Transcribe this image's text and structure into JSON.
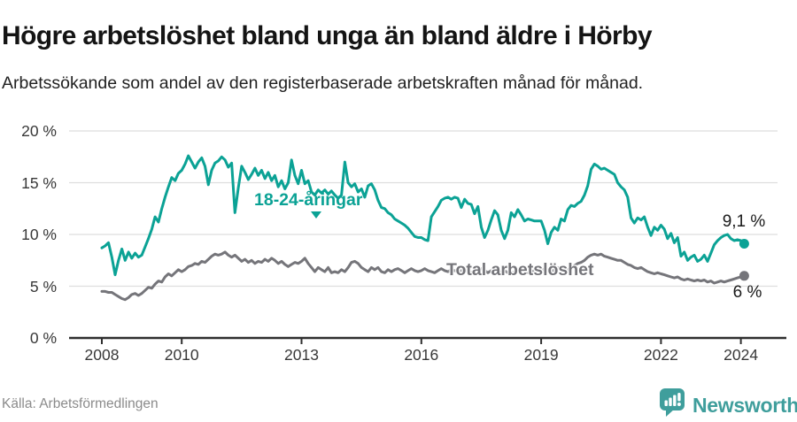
{
  "header": {
    "title": "Högre arbetslöshet bland unga än bland äldre i Hörby",
    "subtitle": "Arbetssökande som andel av den registerbaserade arbetskraften månad för månad."
  },
  "footer": {
    "source": "Källa: Arbetsförmedlingen",
    "brand": "Newsworthy"
  },
  "colors": {
    "youth": "#0ba295",
    "total": "#75757a",
    "grid": "#dedede",
    "axis": "#2f2f2f",
    "brand": "#3f9e9c"
  },
  "chart_data": {
    "type": "line",
    "title": "Högre arbetslöshet bland unga än bland äldre i Hörby",
    "subtitle": "Arbetssökande som andel av den registerbaserade arbetskraften månad för månad.",
    "frequency": "monthly",
    "x_start": "2008-01",
    "x_end": "2024-02",
    "x_tick_years": [
      2008,
      2010,
      2013,
      2016,
      2019,
      2022,
      2024
    ],
    "y_ticks": [
      {
        "value": 0,
        "label": "0 %"
      },
      {
        "value": 5,
        "label": "5 %"
      },
      {
        "value": 10,
        "label": "10 %"
      },
      {
        "value": 15,
        "label": "15 %"
      },
      {
        "value": 20,
        "label": "20 %"
      }
    ],
    "ylim": [
      0,
      20
    ],
    "grid": true,
    "legend_position": "inline-labels",
    "series": [
      {
        "key": "youth",
        "name": "18-24-åringar",
        "end_label": "9,1 %",
        "end_value": 9.1,
        "color": "#0ba295",
        "values": [
          8.7,
          8.9,
          9.2,
          7.8,
          6.1,
          7.5,
          8.6,
          7.5,
          8.3,
          7.7,
          8.2,
          7.8,
          8.0,
          8.8,
          9.6,
          10.5,
          11.7,
          11.2,
          12.5,
          13.6,
          14.6,
          15.5,
          15.2,
          15.9,
          16.2,
          16.8,
          17.6,
          17.0,
          16.4,
          17.0,
          17.4,
          16.6,
          14.8,
          16.2,
          16.9,
          17.1,
          17.5,
          17.2,
          16.5,
          16.9,
          12.1,
          14.5,
          16.6,
          16.0,
          15.3,
          15.8,
          16.4,
          15.7,
          16.2,
          15.4,
          16.0,
          15.2,
          15.7,
          14.6,
          15.2,
          14.4,
          15.0,
          17.2,
          15.7,
          14.9,
          16.2,
          14.9,
          15.2,
          14.1,
          13.8,
          14.3,
          14.0,
          14.3,
          13.9,
          14.2,
          13.8,
          13.5,
          13.8,
          17.0,
          15.0,
          14.6,
          14.9,
          14.1,
          14.4,
          13.6,
          14.7,
          14.9,
          14.3,
          13.3,
          12.6,
          12.5,
          12.1,
          11.9,
          11.5,
          11.3,
          11.1,
          10.9,
          10.6,
          10.2,
          9.8,
          9.7,
          9.7,
          9.5,
          9.4,
          11.7,
          12.2,
          12.7,
          13.3,
          13.5,
          13.6,
          13.4,
          13.6,
          13.5,
          12.6,
          13.4,
          13.0,
          12.9,
          12.0,
          12.7,
          10.7,
          9.7,
          10.4,
          11.4,
          12.3,
          11.9,
          10.4,
          9.6,
          10.4,
          12.1,
          11.7,
          12.4,
          11.9,
          11.3,
          11.5,
          11.4,
          11.3,
          11.3,
          11.3,
          10.4,
          9.1,
          10.2,
          10.7,
          10.4,
          11.5,
          11.3,
          12.4,
          12.8,
          12.7,
          13.0,
          13.2,
          13.8,
          14.7,
          16.3,
          16.8,
          16.6,
          16.3,
          16.4,
          16.2,
          16.0,
          15.8,
          15.0,
          14.6,
          14.3,
          13.6,
          11.6,
          11.1,
          11.6,
          11.4,
          11.7,
          10.7,
          9.9,
          10.7,
          10.4,
          10.9,
          10.5,
          9.6,
          10.1,
          9.2,
          9.7,
          7.9,
          8.3,
          7.5,
          7.8,
          8.0,
          7.4,
          7.6,
          8.0,
          7.4,
          8.2,
          9.0,
          9.4,
          9.7,
          9.9,
          10.0,
          9.6,
          9.4,
          9.5,
          9.4,
          9.1
        ]
      },
      {
        "key": "total",
        "name": "Total arbetslöshet",
        "end_label": "6 %",
        "end_value": 6.0,
        "color": "#75757a",
        "values": [
          4.5,
          4.5,
          4.4,
          4.4,
          4.2,
          4.0,
          3.8,
          3.7,
          3.9,
          4.2,
          4.3,
          4.1,
          4.3,
          4.6,
          4.9,
          4.8,
          5.2,
          5.5,
          5.4,
          5.9,
          6.2,
          6.0,
          6.3,
          6.6,
          6.4,
          6.6,
          6.9,
          7.0,
          7.2,
          7.1,
          7.4,
          7.3,
          7.6,
          7.9,
          8.1,
          8.0,
          8.1,
          8.3,
          8.0,
          7.8,
          8.0,
          7.7,
          7.4,
          7.6,
          7.3,
          7.5,
          7.2,
          7.4,
          7.3,
          7.6,
          7.4,
          7.7,
          7.5,
          7.2,
          7.4,
          7.1,
          6.9,
          7.1,
          7.3,
          7.2,
          7.4,
          7.7,
          7.2,
          6.8,
          6.4,
          6.8,
          6.6,
          6.4,
          6.8,
          6.3,
          6.4,
          6.3,
          6.6,
          6.4,
          6.8,
          7.3,
          7.4,
          7.2,
          6.8,
          6.6,
          6.4,
          6.8,
          6.6,
          6.8,
          6.4,
          6.3,
          6.6,
          6.4,
          6.6,
          6.7,
          6.5,
          6.3,
          6.5,
          6.7,
          6.5,
          6.4,
          6.5,
          6.7,
          6.5,
          6.4,
          6.3,
          6.5,
          6.7,
          6.5,
          6.4,
          6.6,
          6.5,
          6.4,
          6.5,
          6.6,
          6.4,
          6.3,
          6.5,
          6.6,
          6.7,
          6.5,
          6.3,
          6.5,
          6.6,
          6.4,
          6.4,
          6.5,
          6.3,
          6.2,
          6.4,
          6.5,
          6.6,
          6.4,
          6.3,
          6.4,
          6.5,
          6.4,
          6.5,
          6.7,
          6.5,
          6.4,
          6.6,
          6.8,
          6.7,
          6.5,
          6.6,
          6.8,
          7.0,
          7.2,
          7.3,
          7.5,
          7.8,
          8.0,
          8.1,
          8.0,
          8.1,
          7.9,
          7.8,
          7.7,
          7.6,
          7.5,
          7.5,
          7.3,
          7.1,
          7.0,
          6.8,
          6.7,
          6.8,
          6.6,
          6.4,
          6.3,
          6.2,
          6.3,
          6.2,
          6.1,
          6.0,
          5.9,
          5.8,
          5.9,
          5.7,
          5.6,
          5.7,
          5.6,
          5.5,
          5.6,
          5.5,
          5.6,
          5.4,
          5.5,
          5.3,
          5.4,
          5.5,
          5.4,
          5.5,
          5.6,
          5.7,
          5.8,
          5.9,
          6.0
        ]
      }
    ]
  }
}
